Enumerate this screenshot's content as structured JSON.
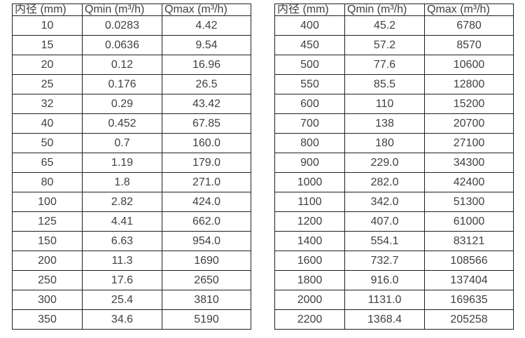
{
  "colors": {
    "background": "#ffffff",
    "border": "#1f1f1f",
    "text": "#404040"
  },
  "tables": [
    {
      "title": "small-diameter-flow-range-table",
      "headers": [
        "内径 (mm)",
        "Qmin (m³/h)",
        "Qmax (m³/h)"
      ],
      "rows": [
        [
          "10",
          "0.0283",
          "4.42"
        ],
        [
          "15",
          "0.0636",
          "9.54"
        ],
        [
          "20",
          "0.12",
          "16.96"
        ],
        [
          "25",
          "0.176",
          "26.5"
        ],
        [
          "32",
          "0.29",
          "43.42"
        ],
        [
          "40",
          "0.452",
          "67.85"
        ],
        [
          "50",
          "0.7",
          "160.0"
        ],
        [
          "65",
          "1.19",
          "179.0"
        ],
        [
          "80",
          "1.8",
          "271.0"
        ],
        [
          "100",
          "2.82",
          "424.0"
        ],
        [
          "125",
          "4.41",
          "662.0"
        ],
        [
          "150",
          "6.63",
          "954.0"
        ],
        [
          "200",
          "11.3",
          "1690"
        ],
        [
          "250",
          "17.6",
          "2650"
        ],
        [
          "300",
          "25.4",
          "3810"
        ],
        [
          "350",
          "34.6",
          "5190"
        ]
      ]
    },
    {
      "title": "large-diameter-flow-range-table",
      "headers": [
        "内径 (mm)",
        "Qmin (m³/h)",
        "Qmax (m³/h)"
      ],
      "rows": [
        [
          "400",
          "45.2",
          "6780"
        ],
        [
          "450",
          "57.2",
          "8570"
        ],
        [
          "500",
          "77.6",
          "10600"
        ],
        [
          "550",
          "85.5",
          "12800"
        ],
        [
          "600",
          "110",
          "15200"
        ],
        [
          "700",
          "138",
          "20700"
        ],
        [
          "800",
          "180",
          "27100"
        ],
        [
          "900",
          "229.0",
          "34300"
        ],
        [
          "1000",
          "282.0",
          "42400"
        ],
        [
          "1100",
          "342.0",
          "51300"
        ],
        [
          "1200",
          "407.0",
          "61000"
        ],
        [
          "1400",
          "554.1",
          "83121"
        ],
        [
          "1600",
          "732.7",
          "108566"
        ],
        [
          "1800",
          "916.0",
          "137404"
        ],
        [
          "2000",
          "1131.0",
          "169635"
        ],
        [
          "2200",
          "1368.4",
          "205258"
        ]
      ]
    }
  ]
}
